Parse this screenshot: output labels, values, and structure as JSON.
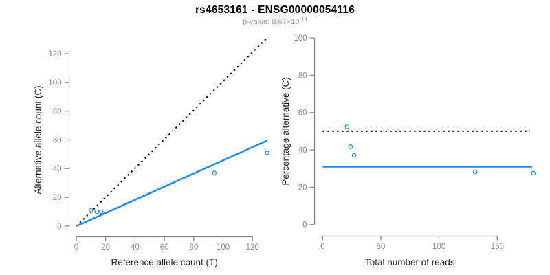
{
  "header": {
    "title": "rs4653161 - ENSG00000054116",
    "pvalue_base": "p-value: 8.67×10",
    "pvalue_exponent": "-14"
  },
  "colors": {
    "point_blue": "#1E8FE8",
    "line_blue": "#1E8FE8",
    "dotted_black": "#000000",
    "axis_gray": "#808080",
    "tick_label_gray": "#8C8C8C",
    "axis_title_color": "#262626"
  },
  "chart_data": [
    {
      "type": "scatter",
      "name": "allele-counts-scatter",
      "xlabel": "Reference allele count (T)",
      "ylabel": "Alternative allele count (C)",
      "xlim": [
        0,
        135
      ],
      "ylim": [
        0,
        136
      ],
      "xticks": [
        0,
        20,
        40,
        60,
        80,
        100,
        120
      ],
      "yticks": [
        0,
        20,
        40,
        60,
        80,
        100,
        120
      ],
      "grid": false,
      "legend": "none",
      "points": [
        [
          10,
          11
        ],
        [
          14,
          10
        ],
        [
          17,
          10
        ],
        [
          94,
          37
        ],
        [
          130,
          51
        ]
      ],
      "lines": [
        {
          "name": "identity-line",
          "style": "dotted",
          "color_key": "dotted_black",
          "x1": 0,
          "y1": 0,
          "x2": 130,
          "y2": 131
        },
        {
          "name": "fit-line",
          "style": "solid",
          "color_key": "line_blue",
          "x1": 0,
          "y1": 0,
          "x2": 130,
          "y2": 59.5
        }
      ]
    },
    {
      "type": "scatter",
      "name": "percentage-alternative-scatter",
      "xlabel": "Total number of reads",
      "ylabel": "Percentage alternative (C)",
      "xlim": [
        0,
        188
      ],
      "ylim": [
        0,
        104
      ],
      "xticks": [
        0,
        50,
        100,
        150
      ],
      "yticks": [
        0,
        20,
        40,
        60,
        80,
        100
      ],
      "grid": false,
      "legend": "none",
      "points": [
        [
          21,
          52.4
        ],
        [
          24,
          41.7
        ],
        [
          27,
          37.0
        ],
        [
          131,
          28.2
        ],
        [
          181,
          27.5
        ]
      ],
      "lines": [
        {
          "name": "fifty-percent-line",
          "style": "dotted",
          "color_key": "dotted_black",
          "x1": 0,
          "y1": 50,
          "x2": 178,
          "y2": 50
        },
        {
          "name": "mean-percentage-line",
          "style": "solid",
          "color_key": "line_blue",
          "x1": 0,
          "y1": 31,
          "x2": 180,
          "y2": 31
        }
      ]
    }
  ]
}
